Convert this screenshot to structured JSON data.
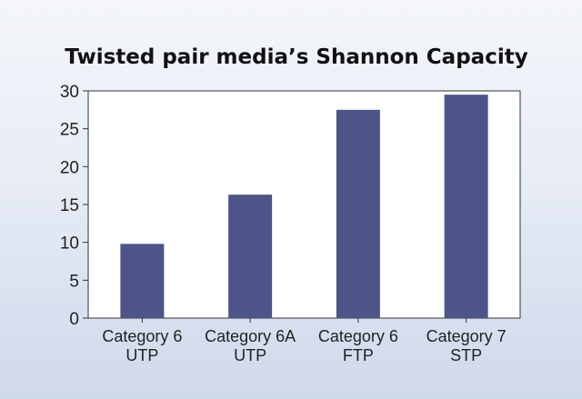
{
  "chart_data": {
    "type": "bar",
    "title": "Twisted pair media’s Shannon Capacity",
    "xlabel": "",
    "ylabel": "",
    "categories": [
      [
        "Category 6",
        "UTP"
      ],
      [
        "Category 6A",
        "UTP"
      ],
      [
        "Category 6",
        "FTP"
      ],
      [
        "Category 7",
        "STP"
      ]
    ],
    "values": [
      9.8,
      16.3,
      27.5,
      29.5
    ],
    "ylim": [
      0,
      30
    ],
    "yticks": [
      0,
      5,
      10,
      15,
      20,
      25,
      30
    ],
    "bar_color": "#4d5487",
    "grid": false,
    "legend": "none"
  }
}
